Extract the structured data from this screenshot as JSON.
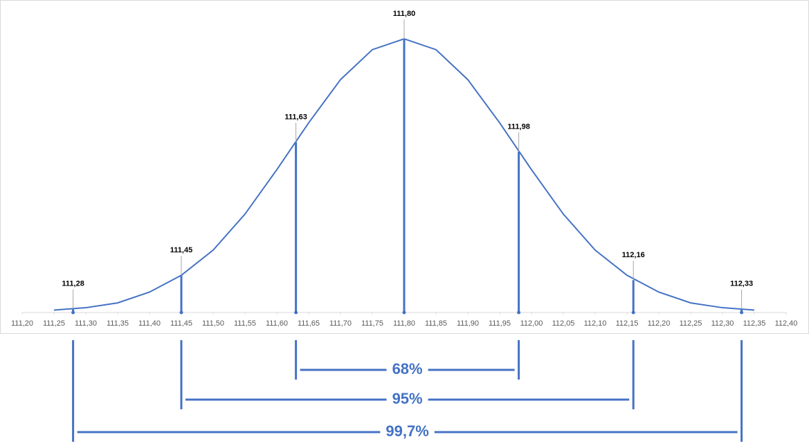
{
  "chart_data": {
    "type": "line",
    "color": "#4472c4",
    "xlim": [
      111.2,
      112.4
    ],
    "ylim": [
      0,
      2.5
    ],
    "xticks": [
      {
        "value": 111.2,
        "label": "111,20"
      },
      {
        "value": 111.25,
        "label": "111,25"
      },
      {
        "value": 111.3,
        "label": "111,30"
      },
      {
        "value": 111.35,
        "label": "111,35"
      },
      {
        "value": 111.4,
        "label": "111,40"
      },
      {
        "value": 111.45,
        "label": "111,45"
      },
      {
        "value": 111.5,
        "label": "111,50"
      },
      {
        "value": 111.55,
        "label": "111,55"
      },
      {
        "value": 111.6,
        "label": "111,60"
      },
      {
        "value": 111.65,
        "label": "111,65"
      },
      {
        "value": 111.7,
        "label": "111,70"
      },
      {
        "value": 111.75,
        "label": "111,75"
      },
      {
        "value": 111.8,
        "label": "111,80"
      },
      {
        "value": 111.85,
        "label": "111,85"
      },
      {
        "value": 111.9,
        "label": "111,90"
      },
      {
        "value": 111.95,
        "label": "111,95"
      },
      {
        "value": 112.0,
        "label": "112,00"
      },
      {
        "value": 112.05,
        "label": "112,05"
      },
      {
        "value": 112.1,
        "label": "112,10"
      },
      {
        "value": 112.15,
        "label": "112,15"
      },
      {
        "value": 112.2,
        "label": "112,20"
      },
      {
        "value": 112.25,
        "label": "112,25"
      },
      {
        "value": 112.3,
        "label": "112,30"
      },
      {
        "value": 112.35,
        "label": "112,35"
      },
      {
        "value": 112.4,
        "label": "112,40"
      }
    ],
    "x": [
      111.25,
      111.3,
      111.35,
      111.4,
      111.45,
      111.5,
      111.55,
      111.6,
      111.65,
      111.7,
      111.75,
      111.8,
      111.85,
      111.9,
      111.95,
      112.0,
      112.05,
      112.1,
      112.15,
      112.2,
      112.25,
      112.3,
      112.35
    ],
    "values": [
      0.02,
      0.04,
      0.08,
      0.17,
      0.31,
      0.52,
      0.82,
      1.19,
      1.58,
      1.94,
      2.19,
      2.28,
      2.19,
      1.94,
      1.58,
      1.19,
      0.82,
      0.52,
      0.31,
      0.17,
      0.08,
      0.04,
      0.02
    ],
    "markers": {
      "x": [
        {
          "value": 111.28,
          "label": "111,28"
        },
        {
          "value": 111.45,
          "label": "111,45"
        },
        {
          "value": 111.63,
          "label": "111,63"
        },
        {
          "value": 111.8,
          "label": "111,80"
        },
        {
          "value": 111.98,
          "label": "111,98"
        },
        {
          "value": 112.16,
          "label": "112,16"
        },
        {
          "value": 112.33,
          "label": "112,33"
        }
      ],
      "values": [
        0.03,
        0.31,
        1.42,
        2.28,
        1.34,
        0.27,
        0.03
      ]
    },
    "intervals": [
      {
        "label": "68%",
        "from": 111.63,
        "to": 111.98
      },
      {
        "label": "95%",
        "from": 111.45,
        "to": 112.16
      },
      {
        "label": "99,7%",
        "from": 111.28,
        "to": 112.33
      }
    ]
  }
}
